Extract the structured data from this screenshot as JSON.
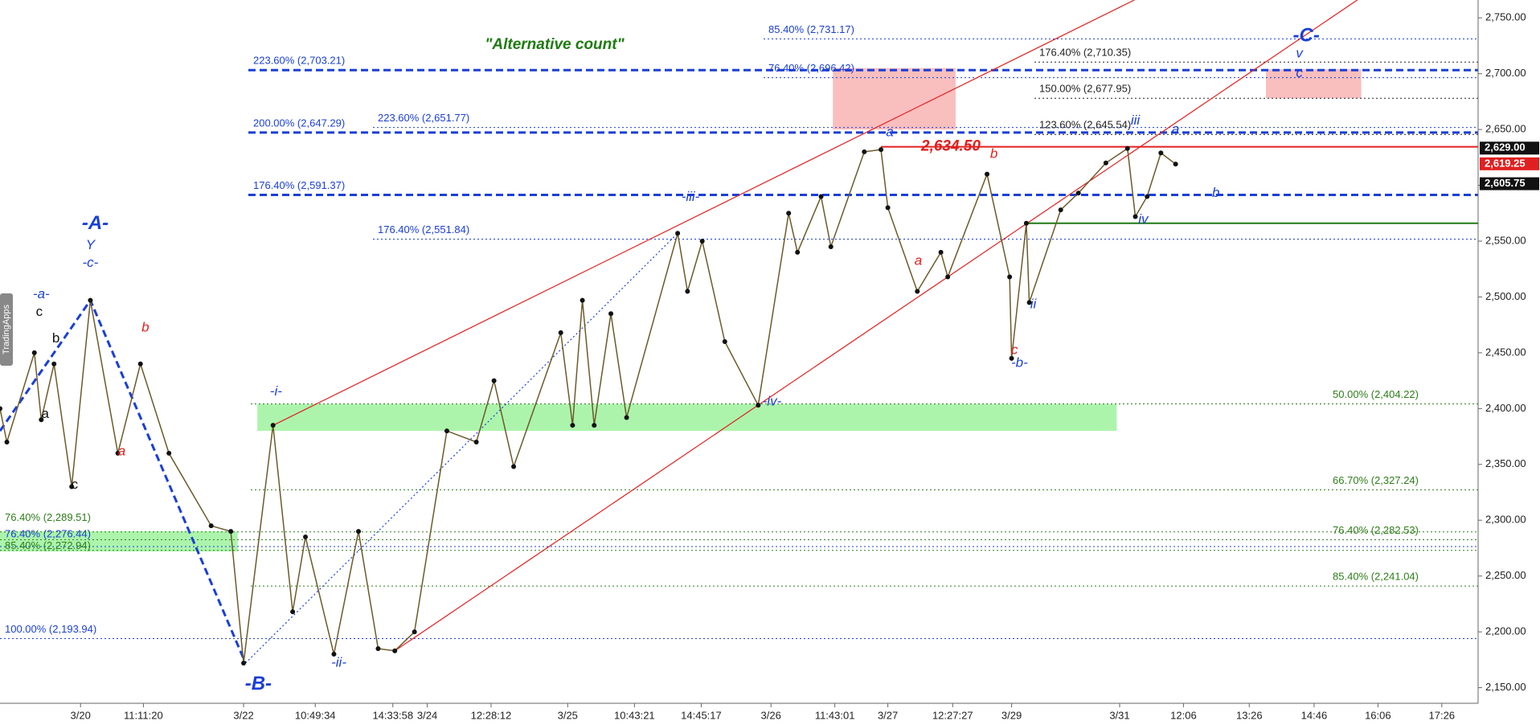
{
  "chart_data": {
    "type": "line",
    "title": "\"Alternative count\"",
    "watermark": "TradingApps",
    "xlim": [
      0,
      150.5
    ],
    "ylim": [
      2136,
      2766
    ],
    "xticks": [
      {
        "value": 8.2,
        "label": "3/20"
      },
      {
        "value": 14.6,
        "label": "11:11:20"
      },
      {
        "value": 24.8,
        "label": "3/22"
      },
      {
        "value": 32.1,
        "label": "10:49:34"
      },
      {
        "value": 40,
        "label": "14:33:58"
      },
      {
        "value": 43.5,
        "label": "3/24"
      },
      {
        "value": 50,
        "label": "12:28:12"
      },
      {
        "value": 57.8,
        "label": "3/25"
      },
      {
        "value": 64.6,
        "label": "10:43:21"
      },
      {
        "value": 71.4,
        "label": "14:45:17"
      },
      {
        "value": 78.5,
        "label": "3/26"
      },
      {
        "value": 85,
        "label": "11:43:01"
      },
      {
        "value": 90.4,
        "label": "3/27"
      },
      {
        "value": 97,
        "label": "12:27:27"
      },
      {
        "value": 103,
        "label": "3/29"
      },
      {
        "value": 114,
        "label": "3/31"
      },
      {
        "value": 120.5,
        "label": "12:06"
      },
      {
        "value": 127.2,
        "label": "13:26"
      },
      {
        "value": 133.8,
        "label": "14:46"
      },
      {
        "value": 140.3,
        "label": "16:06"
      },
      {
        "value": 146.8,
        "label": "17:26"
      }
    ],
    "yticks": [
      {
        "value": 2150,
        "label": "2,150.00"
      },
      {
        "value": 2200,
        "label": "2,200.00"
      },
      {
        "value": 2250,
        "label": "2,250.00"
      },
      {
        "value": 2300,
        "label": "2,300.00"
      },
      {
        "value": 2350,
        "label": "2,350.00"
      },
      {
        "value": 2400,
        "label": "2,400.00"
      },
      {
        "value": 2450,
        "label": "2,450.00"
      },
      {
        "value": 2500,
        "label": "2,500.00"
      },
      {
        "value": 2550,
        "label": "2,550.00"
      },
      {
        "value": 2600,
        "label": "2,600.00"
      },
      {
        "value": 2650,
        "label": "2,650.00"
      },
      {
        "value": 2700,
        "label": "2,700.00"
      },
      {
        "value": 2750,
        "label": "2,750.00"
      }
    ],
    "series": [
      {
        "name": "Price",
        "color": "#6b5a2a",
        "x": [
          0,
          0.7,
          3.5,
          4.2,
          5.5,
          7.3,
          9.2,
          12,
          14.3,
          17.2,
          21.5,
          23.5,
          24.8,
          27.8,
          29.8,
          31.1,
          34,
          36.5,
          38.5,
          40.2,
          42.2,
          45.5,
          48.5,
          50.3,
          52.3,
          57.1,
          58.3,
          59.3,
          60.5,
          62.2,
          63.8,
          69,
          70,
          71.5,
          73.8,
          77.2,
          80.3,
          81.2,
          83.6,
          84.6,
          88,
          89.7,
          90.4,
          93.4,
          95.8,
          96.5,
          100.5,
          102.8,
          103,
          104.5,
          104.8,
          108,
          109.8,
          112.6,
          114.8,
          115.6,
          116.8,
          118.2,
          119.7
        ],
        "values": [
          2400,
          2370,
          2450,
          2390,
          2440,
          2330,
          2497,
          2360,
          2440,
          2360,
          2295,
          2290,
          2172,
          2385,
          2218,
          2285,
          2180,
          2290,
          2185,
          2183,
          2200,
          2380,
          2370,
          2425,
          2348,
          2468,
          2385,
          2497,
          2385,
          2485,
          2392,
          2557,
          2505,
          2550,
          2460,
          2403,
          2575,
          2540,
          2590,
          2545,
          2630,
          2632,
          2580,
          2505,
          2540,
          2518,
          2610,
          2518,
          2445,
          2566,
          2495,
          2578,
          2593,
          2620,
          2633,
          2572,
          2590,
          2629,
          2619
        ]
      }
    ],
    "levels": [
      {
        "label": "85.40% (2,731.17)",
        "value": 2731.17,
        "color": "#1a3fd6",
        "style": "dotted"
      },
      {
        "label": "223.60% (2,703.21)",
        "value": 2703.21,
        "color": "#1a3fd6",
        "style": "dashed"
      },
      {
        "label": "76.40% (2,696.42)",
        "value": 2696.42,
        "color": "#1a3fd6",
        "style": "dotted"
      },
      {
        "label": "200.00% (2,647.29)",
        "value": 2647.29,
        "color": "#1a3fd6",
        "style": "dashed"
      },
      {
        "label": "223.60% (2,651.77)",
        "value": 2651.77,
        "color": "#1a3fd6",
        "style": "dotted"
      },
      {
        "label": "176.40% (2,591.37)",
        "value": 2591.37,
        "color": "#1a3fd6",
        "style": "dashed"
      },
      {
        "label": "176.40% (2,551.84)",
        "value": 2551.84,
        "color": "#1a3fd6",
        "style": "dotted"
      },
      {
        "label": "100.00% (2,193.94)",
        "value": 2193.94,
        "color": "#1a3fd6",
        "style": "dotted"
      },
      {
        "label": "76.40% (2,276.44)",
        "value": 2276.44,
        "color": "#1a3fd6",
        "style": "dotted"
      },
      {
        "label": "176.40% (2,710.35)",
        "value": 2710.35,
        "color": "#222222",
        "style": "dotted"
      },
      {
        "label": "150.00% (2,677.95)",
        "value": 2677.95,
        "color": "#222222",
        "style": "dotted"
      },
      {
        "label": "123.60% (2,645.54)",
        "value": 2645.54,
        "color": "#222222",
        "style": "dotted"
      },
      {
        "label": "50.00% (2,404.22)",
        "value": 2404.22,
        "color": "#2e7d1a",
        "style": "dotted"
      },
      {
        "label": "66.70% (2,327.24)",
        "value": 2327.24,
        "color": "#2e7d1a",
        "style": "dotted"
      },
      {
        "label": "76.40% (2,282.53)",
        "value": 2282.53,
        "color": "#2e7d1a",
        "style": "dotted"
      },
      {
        "label": "85.40% (2,241.04)",
        "value": 2241.04,
        "color": "#2e7d1a",
        "style": "dotted"
      },
      {
        "label": "76.40% (2,289.51)",
        "value": 2289.51,
        "color": "#2e7d1a",
        "style": "dotted"
      },
      {
        "label": "85.40% (2,272.94)",
        "value": 2272.94,
        "color": "#2e7d1a",
        "style": "dotted"
      },
      {
        "label": "2,634.50",
        "value": 2634.5,
        "color": "#e02020",
        "style": "solid"
      },
      {
        "value": 2566,
        "color": "#1f7a12",
        "style": "solid"
      }
    ],
    "zones": [
      {
        "x": [
          26.2,
          113.7
        ],
        "y": [
          2380,
          2404
        ],
        "color": "#90f090"
      },
      {
        "x": [
          0,
          24.2
        ],
        "y": [
          2272,
          2290
        ],
        "color": "#90f090"
      },
      {
        "x": [
          84.8,
          97.3
        ],
        "y": [
          2650,
          2705
        ],
        "color": "#f7a8a8"
      },
      {
        "x": [
          128.9,
          138.6
        ],
        "y": [
          2678,
          2704
        ],
        "color": "#f7a8a8"
      }
    ],
    "trendlines": [
      {
        "color": "#e02020",
        "style": "solid",
        "x": [
          27.8,
          115.5
        ],
        "y": [
          2385,
          2766
        ]
      },
      {
        "color": "#e02020",
        "style": "solid",
        "x": [
          40.2,
          138.2
        ],
        "y": [
          2183,
          2766
        ]
      },
      {
        "color": "#1a3fd6",
        "style": "dashed",
        "x": [
          0,
          9.2,
          25
        ],
        "y": [
          2380,
          2497,
          2172
        ]
      },
      {
        "color": "#1a3fd6",
        "style": "dotted",
        "x": [
          25,
          69
        ],
        "y": [
          2172,
          2557
        ]
      }
    ],
    "price_markers": [
      {
        "value": 2629,
        "label": "2,629.00",
        "color": "#111111"
      },
      {
        "value": 2619.25,
        "label": "2,619.25",
        "color": "#e02020"
      },
      {
        "value": 2605.75,
        "label": "2,605.75",
        "color": "#111111"
      }
    ],
    "annotations": [
      {
        "text": "-A-",
        "color": "#1a3fd6"
      },
      {
        "text": "Y",
        "color": "#1a3fd6"
      },
      {
        "text": "-c-",
        "color": "#1a3fd6"
      },
      {
        "text": "-a-",
        "color": "#1a3fd6"
      },
      {
        "text": "c",
        "color": "#111111"
      },
      {
        "text": "b",
        "color": "#111111"
      },
      {
        "text": "a",
        "color": "#111111"
      },
      {
        "text": "c",
        "color": "#111111"
      },
      {
        "text": "b",
        "color": "#e02020"
      },
      {
        "text": "a",
        "color": "#e02020"
      },
      {
        "text": "-B-",
        "color": "#1a3fd6"
      },
      {
        "text": "-i-",
        "color": "#1a3fd6"
      },
      {
        "text": "-ii-",
        "color": "#1a3fd6"
      },
      {
        "text": "-iii-",
        "color": "#1a3fd6"
      },
      {
        "text": "-iv-",
        "color": "#1a3fd6"
      },
      {
        "text": "-a-",
        "color": "#1a3fd6"
      },
      {
        "text": "a",
        "color": "#e02020"
      },
      {
        "text": "b",
        "color": "#e02020"
      },
      {
        "text": "c",
        "color": "#e02020"
      },
      {
        "text": "-b-",
        "color": "#1a3fd6"
      },
      {
        "text": "ii",
        "color": "#1a3fd6"
      },
      {
        "text": "iv",
        "color": "#1a3fd6"
      },
      {
        "text": "iii",
        "color": "#1a3fd6"
      },
      {
        "text": "a",
        "color": "#1a3fd6"
      },
      {
        "text": "b",
        "color": "#1a3fd6"
      },
      {
        "text": "c",
        "color": "#1a3fd6"
      },
      {
        "text": "v",
        "color": "#1a3fd6"
      },
      {
        "text": "-C-",
        "color": "#1a3fd6"
      }
    ]
  }
}
